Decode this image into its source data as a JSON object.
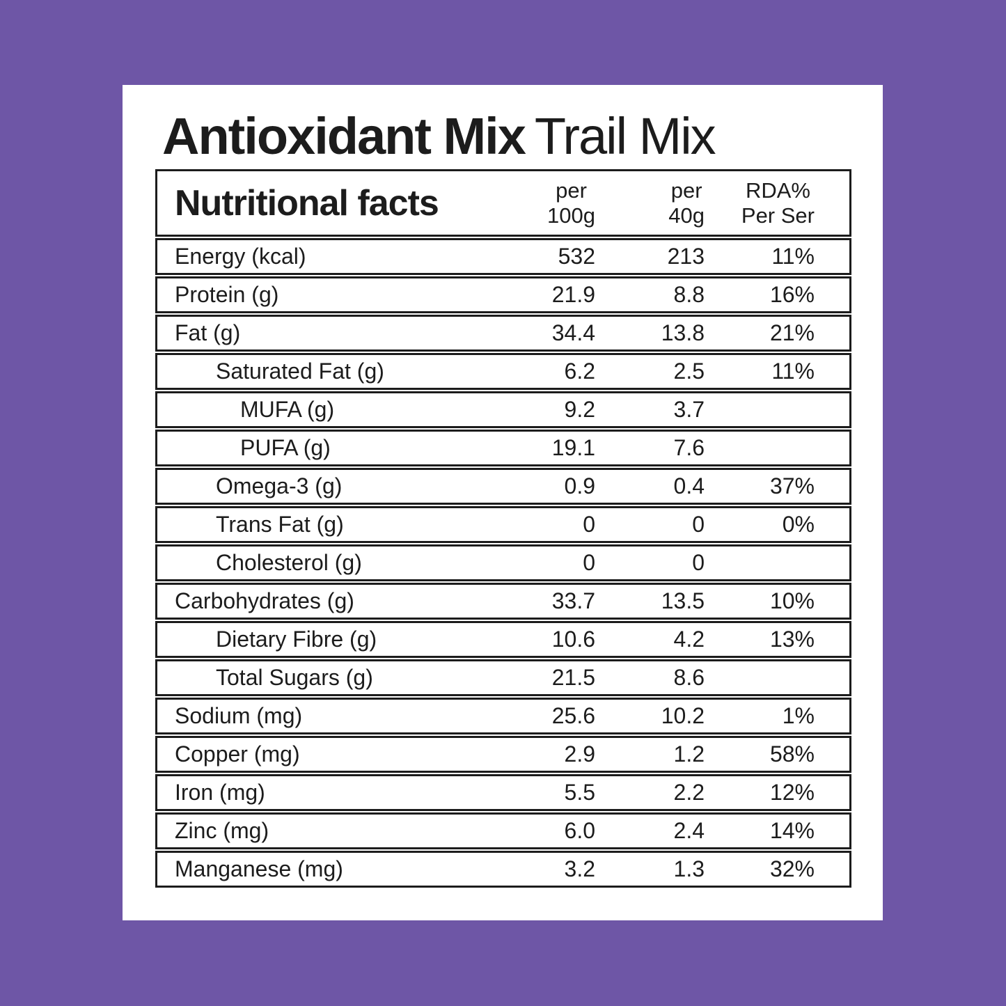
{
  "page": {
    "background_color": "#6e56a6",
    "card_color": "#ffffff",
    "text_color": "#1c1c1c"
  },
  "title": {
    "brand": "Antioxidant Mix",
    "variant": "Trail Mix"
  },
  "table": {
    "header": {
      "label": "Nutritional facts",
      "col1": {
        "line1": "per",
        "line2": "100g"
      },
      "col2": {
        "line1": "per",
        "line2": "40g"
      },
      "col3": {
        "line1": "RDA%",
        "line2": "Per Ser"
      }
    },
    "rows": [
      {
        "label": "Energy (kcal)",
        "indent": 0,
        "per100": "532",
        "per40": "213",
        "rda": "11%"
      },
      {
        "label": "Protein (g)",
        "indent": 0,
        "per100": "21.9",
        "per40": "8.8",
        "rda": "16%"
      },
      {
        "label": "Fat (g)",
        "indent": 0,
        "per100": "34.4",
        "per40": "13.8",
        "rda": "21%"
      },
      {
        "label": "Saturated Fat (g)",
        "indent": 1,
        "per100": "6.2",
        "per40": "2.5",
        "rda": "11%"
      },
      {
        "label": "MUFA (g)",
        "indent": 2,
        "per100": "9.2",
        "per40": "3.7",
        "rda": ""
      },
      {
        "label": "PUFA (g)",
        "indent": 2,
        "per100": "19.1",
        "per40": "7.6",
        "rda": ""
      },
      {
        "label": "Omega-3 (g)",
        "indent": 1,
        "per100": "0.9",
        "per40": "0.4",
        "rda": "37%"
      },
      {
        "label": "Trans Fat (g)",
        "indent": 1,
        "per100": "0",
        "per40": "0",
        "rda": "0%"
      },
      {
        "label": "Cholesterol (g)",
        "indent": 1,
        "per100": "0",
        "per40": "0",
        "rda": ""
      },
      {
        "label": "Carbohydrates (g)",
        "indent": 0,
        "per100": "33.7",
        "per40": "13.5",
        "rda": "10%"
      },
      {
        "label": "Dietary Fibre (g)",
        "indent": 1,
        "per100": "10.6",
        "per40": "4.2",
        "rda": "13%"
      },
      {
        "label": "Total Sugars (g)",
        "indent": 1,
        "per100": "21.5",
        "per40": "8.6",
        "rda": ""
      },
      {
        "label": "Sodium (mg)",
        "indent": 0,
        "per100": "25.6",
        "per40": "10.2",
        "rda": "1%"
      },
      {
        "label": "Copper (mg)",
        "indent": 0,
        "per100": "2.9",
        "per40": "1.2",
        "rda": "58%"
      },
      {
        "label": "Iron (mg)",
        "indent": 0,
        "per100": "5.5",
        "per40": "2.2",
        "rda": "12%"
      },
      {
        "label": "Zinc (mg)",
        "indent": 0,
        "per100": "6.0",
        "per40": "2.4",
        "rda": "14%"
      },
      {
        "label": "Manganese (mg)",
        "indent": 0,
        "per100": "3.2",
        "per40": "1.3",
        "rda": "32%"
      }
    ]
  }
}
